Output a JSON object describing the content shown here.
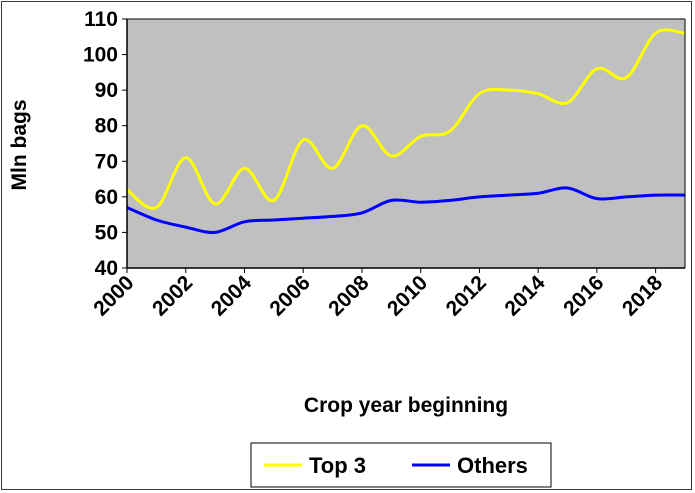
{
  "chart_data": {
    "type": "line",
    "title": "",
    "xlabel": "Crop year beginning",
    "ylabel": "Mln bags",
    "ylim": [
      40,
      110
    ],
    "xlim": [
      2000,
      2019
    ],
    "yticks": [
      "40",
      "50",
      "60",
      "70",
      "80",
      "90",
      "100",
      "110"
    ],
    "xticks": [
      "2000",
      "2002",
      "2004",
      "2006",
      "2008",
      "2010",
      "2012",
      "2014",
      "2016",
      "2018"
    ],
    "plot_background": "#c0c0c0",
    "grid": false,
    "legend_position": "bottom",
    "x": [
      2000,
      2001,
      2002,
      2003,
      2004,
      2005,
      2006,
      2007,
      2008,
      2009,
      2010,
      2011,
      2012,
      2013,
      2014,
      2015,
      2016,
      2017,
      2018,
      2019
    ],
    "series": [
      {
        "name": "Top 3",
        "color": "#ffff00",
        "values": [
          62,
          57,
          71,
          58,
          68,
          59,
          76,
          68,
          80,
          71.5,
          77,
          78.5,
          89,
          90,
          89,
          86.5,
          96,
          93.5,
          106,
          106
        ]
      },
      {
        "name": "Others",
        "color": "#0000ff",
        "values": [
          57,
          53.5,
          51.5,
          50,
          53,
          53.5,
          54,
          54.5,
          55.5,
          59,
          58.5,
          59,
          60,
          60.5,
          61,
          62.5,
          59.5,
          60,
          60.5,
          60.5
        ]
      }
    ]
  }
}
